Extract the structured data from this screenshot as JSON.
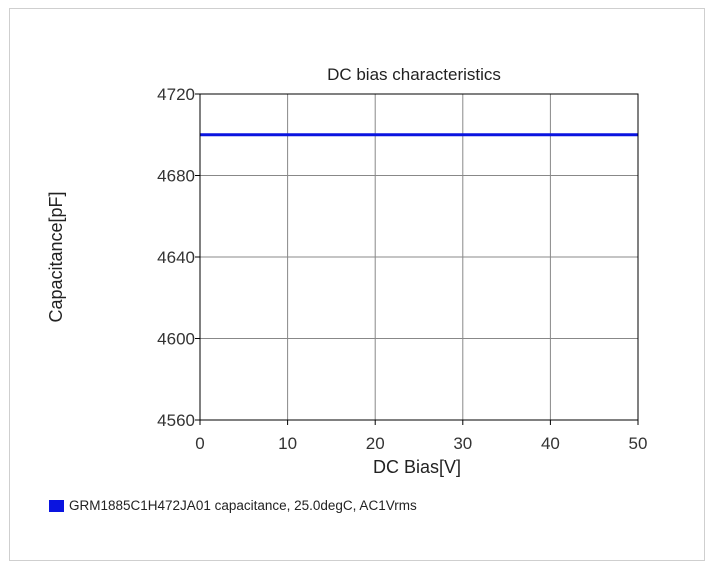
{
  "chart_data": {
    "type": "line",
    "title": "DC bias characteristics",
    "xlabel": "DC Bias[V]",
    "ylabel": "Capacitance[pF]",
    "xlim": [
      0,
      50
    ],
    "ylim": [
      4560,
      4720
    ],
    "xticks": [
      0,
      10,
      20,
      30,
      40,
      50
    ],
    "yticks": [
      4560,
      4600,
      4640,
      4680,
      4720
    ],
    "grid": true,
    "legend_position": "bottom-left",
    "series": [
      {
        "name": "GRM1885C1H472JA01 capacitance, 25.0degC, AC1Vrms",
        "color": "#0a14e0",
        "x": [
          0,
          10,
          20,
          30,
          40,
          50
        ],
        "y": [
          4700,
          4700,
          4700,
          4700,
          4700,
          4700
        ]
      }
    ]
  }
}
